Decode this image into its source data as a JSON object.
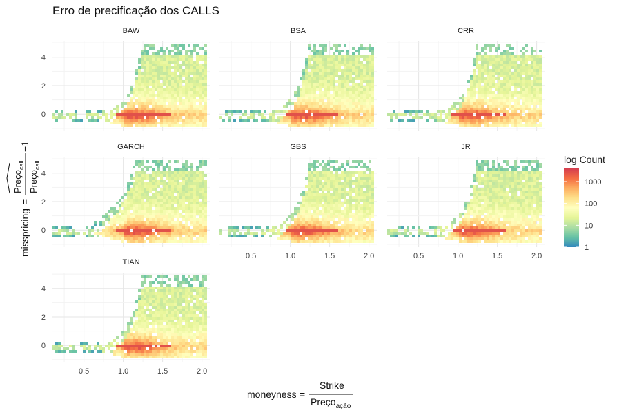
{
  "title": "Erro de precificação dos CALLS",
  "x_axis_label": {
    "lhs": "moneyness",
    "numerator": "Strike",
    "denominator_main": "Preço",
    "denominator_sub": "ação"
  },
  "y_axis_label": {
    "lhs": "misspricing",
    "numerator_main": "Preço",
    "numerator_sub": "call",
    "denominator_main": "Preço",
    "denominator_sub": "call",
    "suffix": "−1"
  },
  "legend": {
    "title": "log Count",
    "ticks": [
      "1000",
      "100",
      "10",
      "1"
    ],
    "colors": [
      "#3288bd",
      "#66c2a5",
      "#abdda4",
      "#e6f598",
      "#ffffbf",
      "#fee08b",
      "#fdae61",
      "#f46d43",
      "#d53e4f"
    ]
  },
  "chart_data": {
    "type": "heatmap",
    "facets": [
      "BAW",
      "BSA",
      "CRR",
      "GARCH",
      "GBS",
      "JR",
      "TIAN"
    ],
    "x_ticks": [
      "0.5",
      "1.0",
      "1.5",
      "2.0"
    ],
    "y_ticks": [
      "0",
      "2",
      "4"
    ],
    "xlim": [
      0.1,
      2.1
    ],
    "ylim": [
      -1.2,
      5.1
    ],
    "color_scale": "log10(count)",
    "legend_ticks": [
      1,
      10,
      100,
      1000
    ]
  }
}
